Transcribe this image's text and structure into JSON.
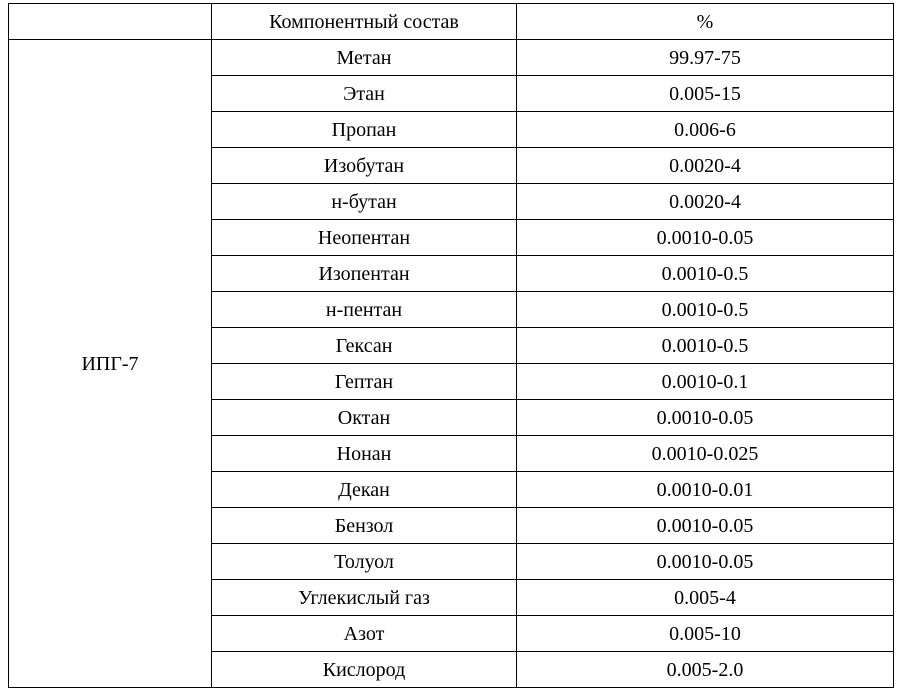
{
  "table": {
    "header": {
      "group": "",
      "component": "Компонентный состав",
      "percent": "%"
    },
    "group_label": "ИПГ-7",
    "rows": [
      {
        "component": "Метан",
        "percent": "99.97-75"
      },
      {
        "component": "Этан",
        "percent": "0.005-15"
      },
      {
        "component": "Пропан",
        "percent": "0.006-6"
      },
      {
        "component": "Изобутан",
        "percent": "0.0020-4"
      },
      {
        "component": "н-бутан",
        "percent": "0.0020-4"
      },
      {
        "component": "Неопентан",
        "percent": "0.0010-0.05"
      },
      {
        "component": "Изопентан",
        "percent": "0.0010-0.5"
      },
      {
        "component": "н-пентан",
        "percent": "0.0010-0.5"
      },
      {
        "component": "Гексан",
        "percent": "0.0010-0.5"
      },
      {
        "component": "Гептан",
        "percent": "0.0010-0.1"
      },
      {
        "component": "Октан",
        "percent": "0.0010-0.05"
      },
      {
        "component": "Нонан",
        "percent": "0.0010-0.025"
      },
      {
        "component": "Декан",
        "percent": "0.0010-0.01"
      },
      {
        "component": "Бензол",
        "percent": "0.0010-0.05"
      },
      {
        "component": "Толуол",
        "percent": "0.0010-0.05"
      },
      {
        "component": "Углекислый газ",
        "percent": "0.005-4"
      },
      {
        "component": "Азот",
        "percent": "0.005-10"
      },
      {
        "component": "Кислород",
        "percent": "0.005-2.0"
      }
    ]
  }
}
